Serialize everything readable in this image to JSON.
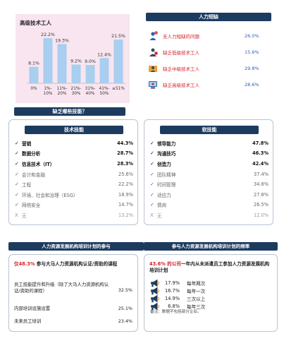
{
  "chart_data": {
    "type": "bar",
    "title": "高级技术工人",
    "categories": [
      "0%",
      "1%-\n10%",
      "11%-\n20%",
      "21%-\n30%",
      "31%-\n40%",
      "41%-\n50%",
      "≥51%"
    ],
    "values": [
      8.1,
      22.2,
      19.3,
      9.2,
      9.0,
      12.4,
      21.5
    ],
    "value_labels": [
      "8.1%",
      "22.2%",
      "19.3%",
      "9.2%",
      "9.0%",
      "12.4%",
      "21.5%"
    ],
    "ylim": [
      0,
      25
    ],
    "bar_color": "#a8cef0",
    "grid": false
  },
  "manpower": {
    "header": "人力短缺",
    "items": [
      {
        "label": "无人力短缺的问题",
        "value": "26.0%",
        "icon": "person-question-icon"
      },
      {
        "label": "缺乏低级技术工人",
        "value": "15.6%",
        "icon": "low-skill-worker-icon"
      },
      {
        "label": "缺乏中级技术工人",
        "value": "29.8%",
        "icon": "mid-skill-worker-icon"
      },
      {
        "label": "缺乏高级技术工人",
        "value": "28.6%",
        "icon": "high-skill-worker-icon"
      }
    ],
    "label_color": "#d4212d",
    "value_color": "#2a62b4"
  },
  "skills": {
    "header": "缺乏哪些技能？",
    "technical": {
      "header": "技术技能",
      "rows": [
        {
          "mark": "✓",
          "label": "营销",
          "value": "44.3%",
          "style": "bold"
        },
        {
          "mark": "✓",
          "label": "数据分析",
          "value": "28.7%",
          "style": "bold"
        },
        {
          "mark": "✓",
          "label": "信息技术（IT）",
          "value": "28.3%",
          "style": "bold"
        },
        {
          "mark": "✓",
          "label": "会计和金融",
          "value": "25.6%",
          "style": "dim"
        },
        {
          "mark": "✓",
          "label": "工程",
          "value": "22.2%",
          "style": "dim"
        },
        {
          "mark": "✓",
          "label": "环境、社会和治理（ESG）",
          "value": "18.9%",
          "style": "dim"
        },
        {
          "mark": "✓",
          "label": "网络安全",
          "value": "14.7%",
          "style": "dim"
        },
        {
          "mark": "X",
          "label": "无",
          "value": "13.2%",
          "style": "none"
        }
      ]
    },
    "soft": {
      "header": "软技能",
      "rows": [
        {
          "mark": "✓",
          "label": "领导能力",
          "value": "47.8%",
          "style": "bold"
        },
        {
          "mark": "✓",
          "label": "沟通技巧",
          "value": "46.3%",
          "style": "bold"
        },
        {
          "mark": "✓",
          "label": "创造力",
          "value": "42.4%",
          "style": "bold"
        },
        {
          "mark": "✓",
          "label": "团队精神",
          "value": "37.4%",
          "style": "dim"
        },
        {
          "mark": "✓",
          "label": "时间管理",
          "value": "34.8%",
          "style": "dim"
        },
        {
          "mark": "✓",
          "label": "适应力",
          "value": "27.8%",
          "style": "dim"
        },
        {
          "mark": "✓",
          "label": "情商",
          "value": "26.5%",
          "style": "dim"
        },
        {
          "mark": "X",
          "label": "无",
          "value": "12.0%",
          "style": "none"
        }
      ]
    }
  },
  "training": {
    "participation": {
      "header": "人力资源发展机构培训计划的参与",
      "lead_highlight": "仅48.3%",
      "lead_rest": " 参与大马人力资源机构认证/资助的课程",
      "rows": [
        {
          "label": "员工技能提升和升级（除了大马人力资源机构认证/资助的课程）",
          "value": "32.5%"
        },
        {
          "label": "内部培训设施设置",
          "value": "25.1%"
        },
        {
          "label": "未来员工培训",
          "value": "23.4%"
        }
      ]
    },
    "frequency": {
      "header": "参与人力资源发展机构培训计划的频率",
      "lead_highlight": "43.6% 的公司",
      "lead_rest": "一年内从未派遣员工参加人力资源发展机构培训计划",
      "rows": [
        {
          "value": "17.9%",
          "label": "每年两次"
        },
        {
          "value": "16.7%",
          "label": "每年一次"
        },
        {
          "value": "14.9%",
          "label": "三次以上"
        },
        {
          "value": "6.8%",
          "label": "每年三次"
        }
      ],
      "note": "备注：数据不包括部分企业。"
    }
  },
  "colors": {
    "header_bg": "#1d3b5f",
    "highlight": "#d4212d",
    "chart_bg": "#f8e5ef"
  }
}
